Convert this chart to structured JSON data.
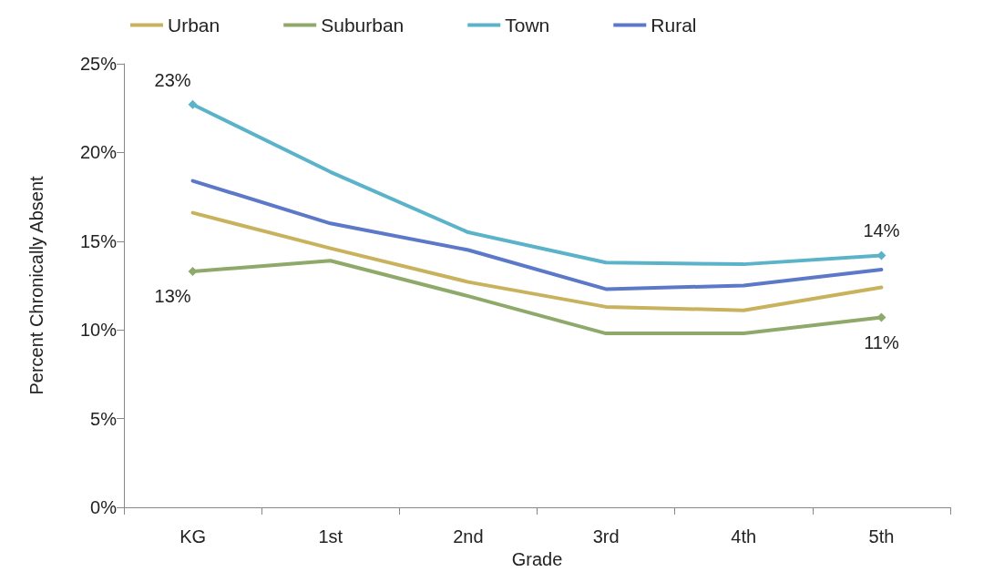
{
  "chart_data": {
    "type": "line",
    "xlabel": "Grade",
    "ylabel": "Percent Chronically Absent",
    "categories": [
      "KG",
      "1st",
      "2nd",
      "3rd",
      "4th",
      "5th"
    ],
    "series": [
      {
        "name": "Urban",
        "color": "#c9b25e",
        "values": [
          16.6,
          14.6,
          12.7,
          11.3,
          11.1,
          12.4
        ]
      },
      {
        "name": "Suburban",
        "color": "#8fa96b",
        "values": [
          13.3,
          13.9,
          11.9,
          9.8,
          9.8,
          10.7
        ],
        "value_labels": [
          "13%",
          null,
          null,
          null,
          null,
          "11%"
        ]
      },
      {
        "name": "Town",
        "color": "#5bb3c9",
        "values": [
          22.7,
          18.9,
          15.5,
          13.8,
          13.7,
          14.2
        ],
        "value_labels": [
          "23%",
          null,
          null,
          null,
          null,
          "14%"
        ]
      },
      {
        "name": "Rural",
        "color": "#5c79c9",
        "values": [
          18.4,
          16.0,
          14.5,
          12.3,
          12.5,
          13.4
        ]
      }
    ],
    "ylim": [
      0,
      25
    ],
    "yticks": [
      {
        "value": 0,
        "label": "0%"
      },
      {
        "value": 5,
        "label": "5%"
      },
      {
        "value": 10,
        "label": "10%"
      },
      {
        "value": 15,
        "label": "15%"
      },
      {
        "value": 20,
        "label": "20%"
      },
      {
        "value": 25,
        "label": "25%"
      }
    ],
    "grid": false,
    "legend": "top",
    "line_style": "solid"
  }
}
